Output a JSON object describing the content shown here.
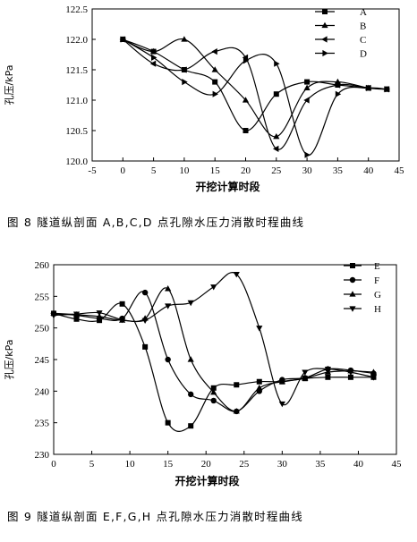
{
  "chart_data": [
    {
      "type": "line",
      "xlabel": "开挖计算时段",
      "ylabel": "孔压/kPa",
      "xlim": [
        -5,
        45
      ],
      "ylim": [
        120.0,
        122.5
      ],
      "xticks": [
        -5,
        0,
        5,
        10,
        15,
        20,
        25,
        30,
        35,
        40,
        45
      ],
      "yticks": [
        120.0,
        120.5,
        121.0,
        121.5,
        122.0,
        122.5
      ],
      "legend": "top-right",
      "caption": "图 8   隧道纵剖面 A,B,C,D 点孔隙水压力消散时程曲线",
      "series": [
        {
          "name": "A",
          "marker": "square",
          "x": [
            0,
            5,
            10,
            15,
            20,
            25,
            30,
            35,
            40,
            43
          ],
          "y": [
            122.0,
            121.8,
            121.5,
            121.3,
            120.5,
            121.1,
            121.3,
            121.25,
            121.2,
            121.18
          ]
        },
        {
          "name": "B",
          "marker": "triangle-up",
          "x": [
            0,
            5,
            10,
            15,
            20,
            25,
            30,
            35,
            40,
            43
          ],
          "y": [
            122.0,
            121.8,
            122.0,
            121.5,
            121.0,
            120.4,
            121.2,
            121.3,
            121.2,
            121.18
          ]
        },
        {
          "name": "C",
          "marker": "triangle-left",
          "x": [
            0,
            5,
            10,
            15,
            20,
            25,
            30,
            35,
            40,
            43
          ],
          "y": [
            122.0,
            121.6,
            121.5,
            121.8,
            121.7,
            120.2,
            121.0,
            121.25,
            121.2,
            121.18
          ]
        },
        {
          "name": "D",
          "marker": "triangle-right",
          "x": [
            0,
            5,
            10,
            15,
            20,
            25,
            30,
            35,
            40,
            43
          ],
          "y": [
            122.0,
            121.7,
            121.3,
            121.1,
            121.65,
            121.6,
            120.1,
            121.1,
            121.2,
            121.18
          ]
        }
      ]
    },
    {
      "type": "line",
      "xlabel": "开挖计算时段",
      "ylabel": "孔压/kPa",
      "xlim": [
        0,
        45
      ],
      "ylim": [
        230,
        260
      ],
      "xticks": [
        0,
        5,
        10,
        15,
        20,
        25,
        30,
        35,
        40,
        45
      ],
      "yticks": [
        230,
        235,
        240,
        245,
        250,
        255,
        260
      ],
      "legend": "top-right",
      "caption": "图 9   隧道纵剖面 E,F,G,H 点孔隙水压力消散时程曲线",
      "series": [
        {
          "name": "E",
          "marker": "square",
          "x": [
            0,
            3,
            6,
            9,
            12,
            15,
            18,
            21,
            24,
            27,
            30,
            33,
            36,
            39,
            42
          ],
          "y": [
            252.3,
            251.4,
            251.2,
            253.8,
            247.0,
            235.0,
            234.5,
            240.5,
            241.0,
            241.5,
            241.5,
            242.0,
            242.2,
            242.2,
            242.2
          ]
        },
        {
          "name": "F",
          "marker": "circle",
          "x": [
            0,
            3,
            6,
            9,
            12,
            15,
            18,
            21,
            24,
            27,
            30,
            33,
            36,
            39,
            42
          ],
          "y": [
            252.3,
            252.0,
            251.5,
            251.5,
            255.6,
            245.0,
            239.5,
            238.5,
            236.8,
            240.0,
            241.8,
            242.1,
            243.5,
            243.3,
            242.8
          ]
        },
        {
          "name": "G",
          "marker": "triangle-up",
          "x": [
            0,
            3,
            6,
            9,
            12,
            15,
            18,
            21,
            24,
            27,
            30,
            33,
            36,
            39,
            42
          ],
          "y": [
            252.3,
            252.1,
            251.8,
            251.2,
            251.5,
            256.2,
            245.0,
            239.8,
            236.8,
            240.5,
            241.5,
            242.0,
            243.0,
            243.2,
            243.0
          ]
        },
        {
          "name": "H",
          "marker": "triangle-down",
          "x": [
            0,
            3,
            6,
            9,
            12,
            15,
            18,
            21,
            24,
            27,
            30,
            33,
            36,
            39,
            42
          ],
          "y": [
            252.0,
            252.2,
            252.4,
            251.3,
            251.2,
            253.5,
            254.0,
            256.5,
            258.5,
            250.0,
            238.0,
            243.0,
            243.5,
            243.0,
            242.2
          ]
        }
      ]
    }
  ]
}
